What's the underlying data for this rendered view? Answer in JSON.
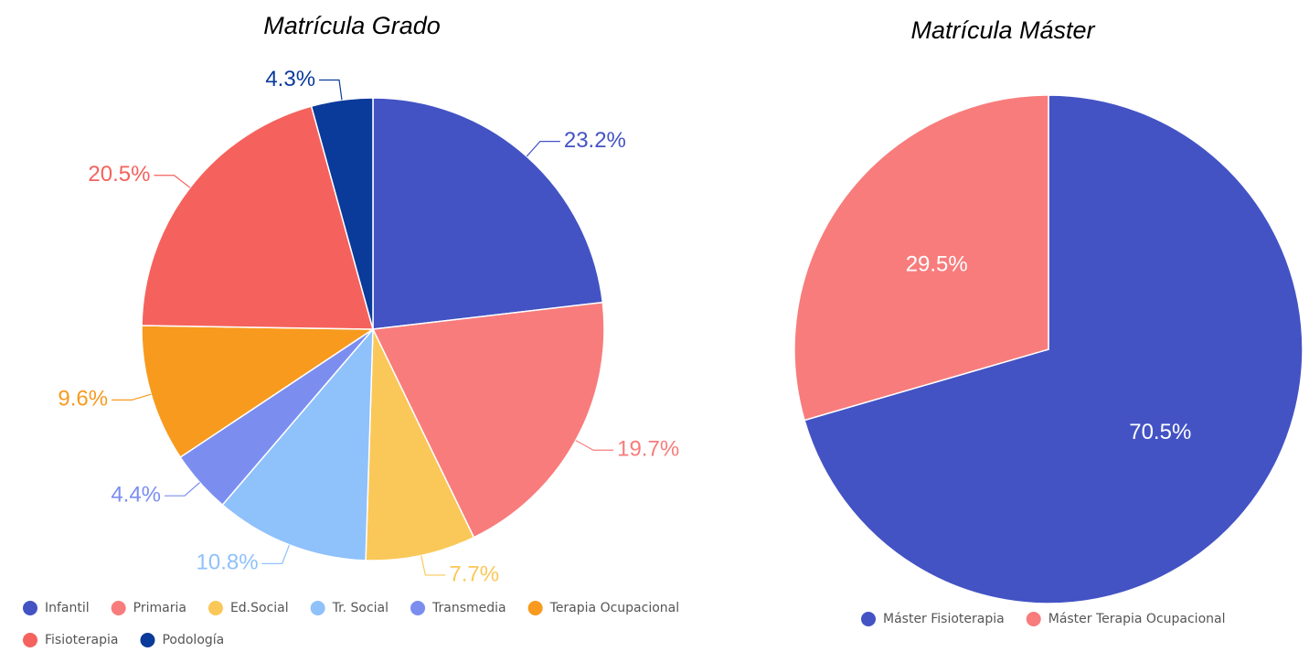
{
  "chart_data": [
    {
      "type": "pie",
      "title": "Matrícula Grado",
      "categories": [
        "Infantil",
        "Primaria",
        "Ed.Social",
        "Tr. Social",
        "Transmedia",
        "Terapia Ocupacional",
        "Fisioterapia",
        "Podología"
      ],
      "values": [
        23.2,
        19.7,
        7.7,
        10.8,
        4.4,
        9.6,
        20.5,
        4.3
      ],
      "value_labels": [
        "23.2%",
        "19.7%",
        "7.7%",
        "10.8%",
        "4.4%",
        "9.6%",
        "20.5%",
        "4.3%"
      ],
      "colors": [
        "#4353c4",
        "#f87c7c",
        "#fac858",
        "#8fc1fb",
        "#7b8ef0",
        "#f79a1e",
        "#f5625d",
        "#0a3a9a"
      ],
      "label_position": "outside"
    },
    {
      "type": "pie",
      "title": "Matrícula Máster",
      "categories": [
        "Máster Fisioterapia",
        "Máster Terapia Ocupacional"
      ],
      "values": [
        70.5,
        29.5
      ],
      "value_labels": [
        "70.5%",
        "29.5%"
      ],
      "colors": [
        "#4353c4",
        "#f87c7c"
      ],
      "label_position": "inside"
    }
  ]
}
